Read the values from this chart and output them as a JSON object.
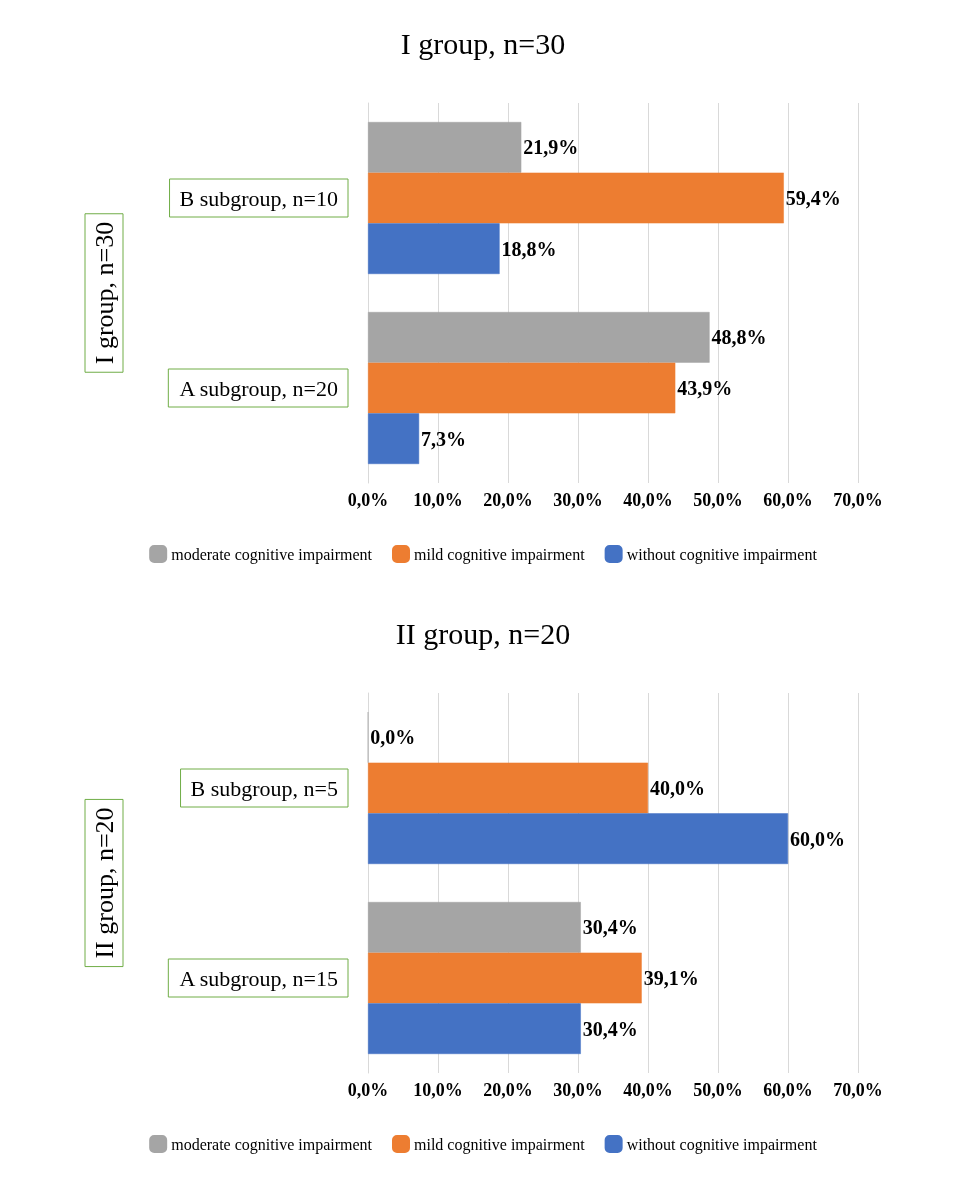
{
  "chart_data": [
    {
      "type": "bar",
      "orientation": "horizontal",
      "title": "I group, n=30",
      "ylabel": "I group, n=30",
      "categories": [
        "B subgroup, n=10",
        "A subgroup, n=20"
      ],
      "series": [
        {
          "name": "moderate cognitive impairment",
          "color": "#a5a5a5",
          "values": [
            21.9,
            48.8
          ],
          "value_labels": [
            "21,9%",
            "48,8%"
          ]
        },
        {
          "name": "mild cognitive impairment",
          "color": "#ed7d31",
          "values": [
            59.4,
            43.9
          ],
          "value_labels": [
            "59,4%",
            "43,9%"
          ]
        },
        {
          "name": "without cognitive impairment",
          "color": "#4472c4",
          "values": [
            18.8,
            7.3
          ],
          "value_labels": [
            "18,8%",
            "7,3%"
          ]
        }
      ],
      "xlim": [
        0,
        70
      ],
      "xticks": [
        {
          "value": 0,
          "label": "0,0%"
        },
        {
          "value": 10,
          "label": "10,0%"
        },
        {
          "value": 20,
          "label": "20,0%"
        },
        {
          "value": 30,
          "label": "30,0%"
        },
        {
          "value": 40,
          "label": "40,0%"
        },
        {
          "value": 50,
          "label": "50,0%"
        },
        {
          "value": 60,
          "label": "60,0%"
        },
        {
          "value": 70,
          "label": "70,0%"
        }
      ],
      "grid": "x",
      "legend": "bottom"
    },
    {
      "type": "bar",
      "orientation": "horizontal",
      "title": "II group, n=20",
      "ylabel": "II group, n=20",
      "categories": [
        "B subgroup, n=5",
        "A subgroup, n=15"
      ],
      "series": [
        {
          "name": "moderate cognitive impairment",
          "color": "#a5a5a5",
          "values": [
            0.0,
            30.4
          ],
          "value_labels": [
            "0,0%",
            "30,4%"
          ]
        },
        {
          "name": "mild cognitive impairment",
          "color": "#ed7d31",
          "values": [
            40.0,
            39.1
          ],
          "value_labels": [
            "40,0%",
            "39,1%"
          ]
        },
        {
          "name": "without cognitive impairment",
          "color": "#4472c4",
          "values": [
            60.0,
            30.4
          ],
          "value_labels": [
            "60,0%",
            "30,4%"
          ]
        }
      ],
      "xlim": [
        0,
        70
      ],
      "xticks": [
        {
          "value": 0,
          "label": "0,0%"
        },
        {
          "value": 10,
          "label": "10,0%"
        },
        {
          "value": 20,
          "label": "20,0%"
        },
        {
          "value": 30,
          "label": "30,0%"
        },
        {
          "value": 40,
          "label": "40,0%"
        },
        {
          "value": 50,
          "label": "50,0%"
        },
        {
          "value": 60,
          "label": "60,0%"
        },
        {
          "value": 70,
          "label": "70,0%"
        }
      ],
      "grid": "x",
      "legend": "bottom"
    }
  ]
}
